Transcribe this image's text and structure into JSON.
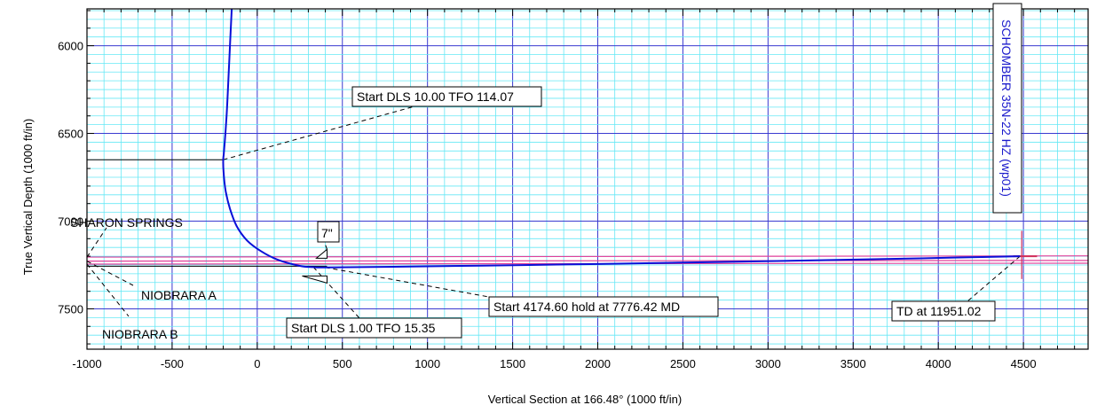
{
  "colors": {
    "minor_grid": "#66e8f5",
    "major_grid": "#3a3ad0",
    "wellpath": "#0a10d8",
    "formation": "#e0409a",
    "target": "#d0305a",
    "frame": "#000000"
  },
  "chart_data": {
    "type": "line",
    "xlabel": "Vertical Section at 166.48° (1000 ft/in)",
    "ylabel": "True Vertical Depth (1000 ft/in)",
    "xlim": [
      -1000,
      4880
    ],
    "ylim": [
      7730,
      5790
    ],
    "y_inverted": true,
    "grid": true,
    "x_ticks": [
      -1000,
      -500,
      0,
      500,
      1000,
      1500,
      2000,
      2500,
      3000,
      3500,
      4000,
      4500
    ],
    "x_tick_labels": [
      "-1000",
      "-500",
      "0",
      "500",
      "1000",
      "1500",
      "2000",
      "2500",
      "3000",
      "3500",
      "4000",
      "4500"
    ],
    "y_ticks": [
      6000,
      6500,
      7000,
      7500
    ],
    "y_tick_labels": [
      "6000",
      "6500",
      "7000",
      "7500"
    ],
    "series": [
      {
        "name": "SCHOMBER 35N-22 HZ (wp01)",
        "x": [
          -150,
          -165,
          -180,
          -195,
          -200,
          -198,
          -185,
          -160,
          -120,
          -60,
          20,
          120,
          250,
          330,
          400,
          800,
          1600,
          2400,
          3200,
          3900,
          4480
        ],
        "y": [
          5790,
          6100,
          6400,
          6600,
          6650,
          6720,
          6830,
          6930,
          7030,
          7110,
          7170,
          7220,
          7255,
          7262,
          7264,
          7260,
          7250,
          7238,
          7225,
          7212,
          7200
        ]
      }
    ],
    "formation_lines": [
      {
        "name": "SHARON SPRINGS",
        "y_start": 7205,
        "y_end": 7198
      },
      {
        "name": "NIOBRARA A",
        "y_start": 7228,
        "y_end": 7224
      },
      {
        "name": "NIOBRARA B",
        "y_start": 7245,
        "y_end": 7240
      }
    ],
    "casing": {
      "label": "7\"",
      "x": 410,
      "y": 7262
    },
    "annotations": [
      {
        "text": "Start DLS 10.00 TFO 114.07",
        "point_x": -200,
        "point_y": 6650
      },
      {
        "text": "Start DLS 1.00 TFO 15.35",
        "point_x": 330,
        "point_y": 7262
      },
      {
        "text": "Start 4174.60 hold at 7776.42 MD",
        "point_x": 400,
        "point_y": 7264
      },
      {
        "text": "TD at 11951.02",
        "point_x": 4480,
        "point_y": 7200
      },
      {
        "text": "SHARON SPRINGS",
        "point_x": -1000,
        "point_y": 7205
      },
      {
        "text": "NIOBRARA A",
        "point_x": -1000,
        "point_y": 7228
      },
      {
        "text": "NIOBRARA B",
        "point_x": -1000,
        "point_y": 7245
      }
    ],
    "legend": "none",
    "well_label": "SCHOMBER 35N-22 HZ (wp01)"
  }
}
